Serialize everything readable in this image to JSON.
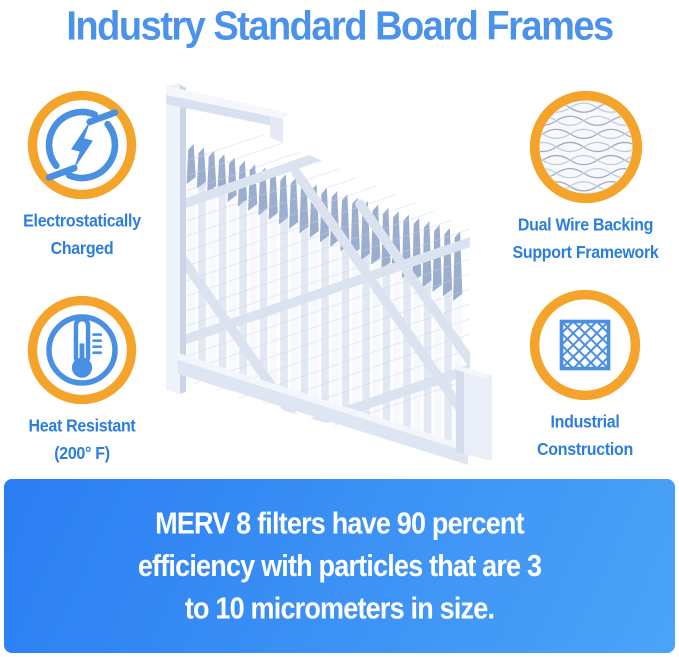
{
  "title": "Industry Standard Board Frames",
  "features": [
    {
      "icon": "lightning-circle-icon",
      "label1": "Electrostatically",
      "label2": "Charged"
    },
    {
      "icon": "wire-mesh-icon",
      "label1": "Dual Wire Backing",
      "label2": "Support Framework"
    },
    {
      "icon": "thermometer-icon",
      "label1": "Heat Resistant",
      "label2": "(200° F)"
    },
    {
      "icon": "lattice-square-icon",
      "label1": "Industrial",
      "label2": "Construction"
    }
  ],
  "banner": {
    "line1": "MERV 8 filters have 90 percent",
    "line2": "efficiency with particles that are 3",
    "line3": "to 10 micrometers in size."
  },
  "colors": {
    "title_blue": "#4a92ea",
    "label_blue": "#2c7ede",
    "icon_blue": "#4a90e2",
    "ring_orange": "#f5a42b",
    "banner_start": "#2b7df2",
    "banner_end": "#4ba4f7",
    "pleat_tip": "#9baed0",
    "frame_white": "#eef2f9"
  }
}
